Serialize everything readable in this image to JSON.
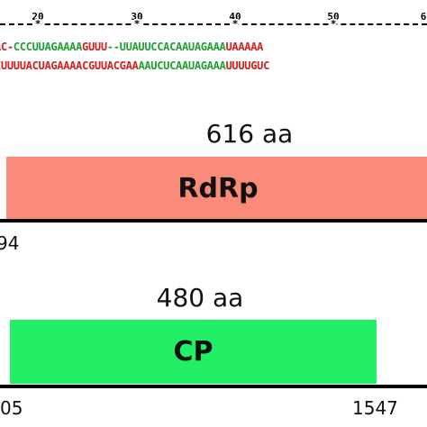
{
  "ruler": {
    "ticks": [
      "20",
      "30",
      "40",
      "50",
      "6"
    ]
  },
  "alignment": {
    "row1": [
      {
        "t": "AC-",
        "c": "r"
      },
      {
        "t": "CCCUUAGAAAA",
        "c": "g"
      },
      {
        "t": "GUUU",
        "c": "r"
      },
      {
        "t": "--UUAUUC",
        "c": "g"
      },
      {
        "t": "CACAAUAGAAA",
        "c": "g"
      },
      {
        "t": "U",
        "c": "r"
      },
      {
        "t": "AAAAA",
        "c": "r"
      }
    ],
    "row2": [
      {
        "t": "CUUUUACUAGAAAA",
        "c": "r"
      },
      {
        "t": "CGUUACGAA",
        "c": "r"
      },
      {
        "t": "AAUCUCAAUAGAAA",
        "c": "g"
      },
      {
        "t": "UUUUGUC",
        "c": "r"
      }
    ]
  },
  "genes": [
    {
      "length_label": "616 aa",
      "name": "RdRp",
      "color": "#fa8a7a",
      "start_label": "94"
    },
    {
      "length_label": "480 aa",
      "name": "CP",
      "color": "#22ee66",
      "start_label": "05",
      "end_label": "1547"
    }
  ]
}
